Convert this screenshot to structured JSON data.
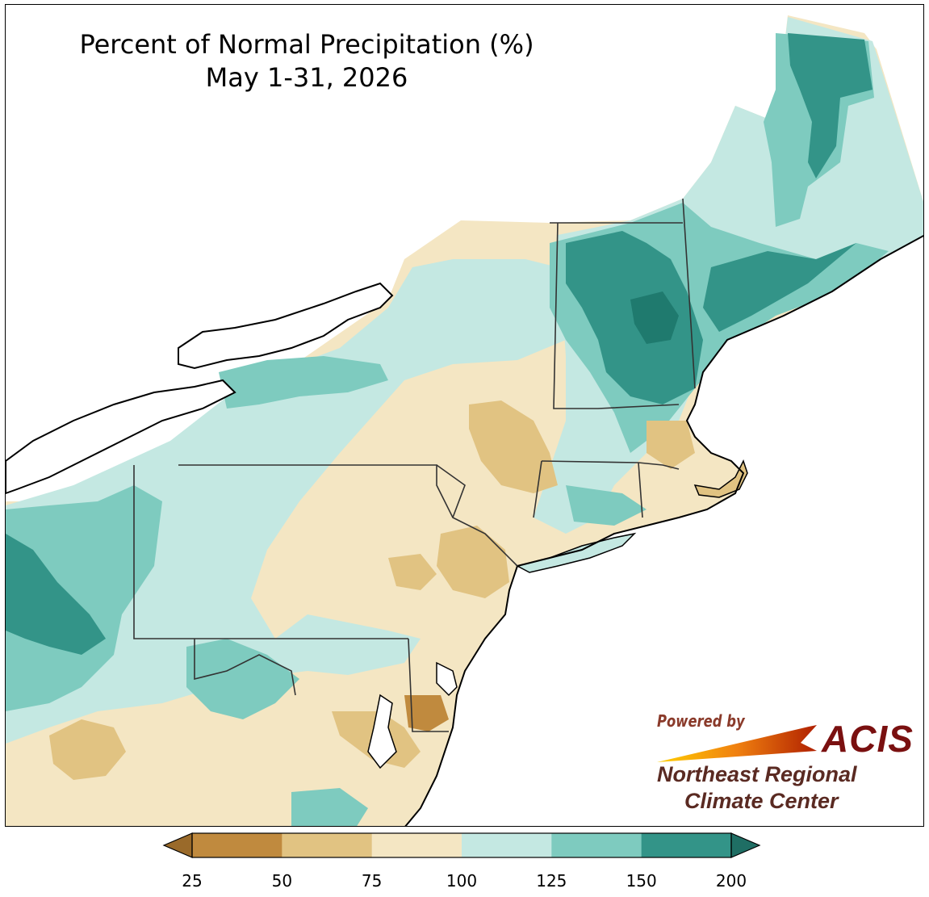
{
  "title": {
    "line1": "Percent of Normal Precipitation (%)",
    "line2": "May 1-31, 2026"
  },
  "logo": {
    "powered_by": "Powered by",
    "acis": "ACIS",
    "org_line1": "Northeast Regional",
    "org_line2": "Climate Center"
  },
  "colorbar": {
    "bins": [
      {
        "from": 25,
        "to": 50,
        "color": "#c08a3e"
      },
      {
        "from": 50,
        "to": 75,
        "color": "#e1c382"
      },
      {
        "from": 75,
        "to": 100,
        "color": "#f4e6c3"
      },
      {
        "from": 100,
        "to": 125,
        "color": "#c4e8e2"
      },
      {
        "from": 125,
        "to": 150,
        "color": "#7ecbbf"
      },
      {
        "from": 150,
        "to": 200,
        "color": "#339488"
      }
    ],
    "under_color": "#9a6a2a",
    "over_color": "#1f6e64",
    "tick_labels": [
      "25",
      "50",
      "75",
      "100",
      "125",
      "150",
      "200"
    ]
  },
  "map_colors": {
    "very_dry": "#c08a3e",
    "dry": "#e1c382",
    "below": "#f4e6c3",
    "above": "#c4e8e2",
    "wet": "#7ecbbf",
    "very_wet": "#339488",
    "extreme_wet": "#1f7a6e",
    "water": "#ffffff",
    "border": "#222222"
  }
}
